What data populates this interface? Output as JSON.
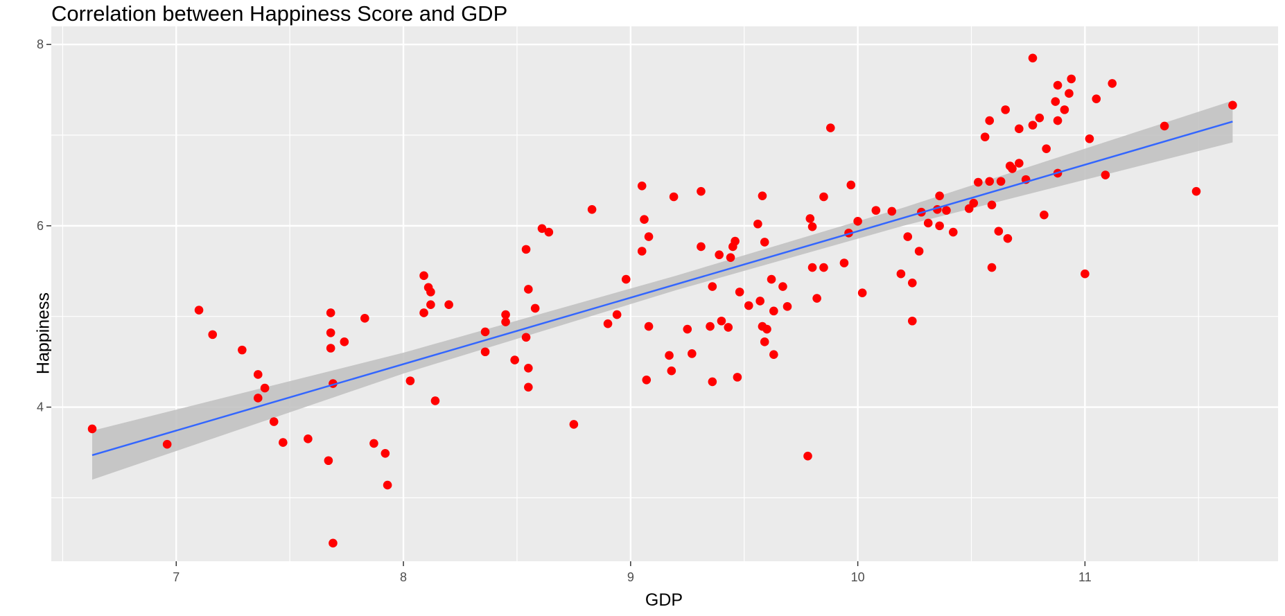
{
  "chart_data": {
    "type": "scatter",
    "title": "Correlation between Happiness Score and GDP",
    "xlabel": "GDP",
    "ylabel": "Happiness",
    "xlim": [
      6.45,
      11.85
    ],
    "ylim": [
      2.3,
      8.2
    ],
    "x_ticks": [
      7,
      8,
      9,
      10,
      11
    ],
    "y_ticks": [
      4,
      6,
      8
    ],
    "grid": true,
    "legend": "none",
    "colors": {
      "panel": "#ebebeb",
      "grid": "#ffffff",
      "points": "#ff0000",
      "trend_line": "#3366ff",
      "confidence_band": "#c0c0c0"
    },
    "trend_line": {
      "x": [
        6.63,
        11.65
      ],
      "y": [
        3.47,
        7.15
      ]
    },
    "confidence_band": {
      "x": [
        6.63,
        8.0,
        9.2,
        10.2,
        11.65
      ],
      "lower": [
        3.2,
        4.37,
        5.29,
        6.0,
        6.92
      ],
      "upper": [
        3.74,
        4.6,
        5.45,
        6.2,
        7.38
      ]
    },
    "points": [
      [
        6.63,
        3.76
      ],
      [
        6.96,
        3.59
      ],
      [
        7.1,
        5.07
      ],
      [
        7.16,
        4.8
      ],
      [
        7.29,
        4.63
      ],
      [
        7.36,
        4.36
      ],
      [
        7.36,
        4.1
      ],
      [
        7.39,
        4.21
      ],
      [
        7.43,
        3.84
      ],
      [
        7.47,
        3.61
      ],
      [
        7.58,
        3.65
      ],
      [
        7.67,
        3.41
      ],
      [
        7.68,
        5.04
      ],
      [
        7.68,
        4.82
      ],
      [
        7.68,
        4.65
      ],
      [
        7.69,
        4.26
      ],
      [
        7.69,
        2.5
      ],
      [
        7.74,
        4.72
      ],
      [
        7.83,
        4.98
      ],
      [
        7.87,
        3.6
      ],
      [
        7.92,
        3.49
      ],
      [
        7.93,
        3.14
      ],
      [
        8.03,
        4.29
      ],
      [
        8.09,
        5.45
      ],
      [
        8.09,
        5.04
      ],
      [
        8.11,
        5.32
      ],
      [
        8.12,
        5.27
      ],
      [
        8.12,
        5.13
      ],
      [
        8.14,
        4.07
      ],
      [
        8.2,
        5.13
      ],
      [
        8.36,
        4.83
      ],
      [
        8.36,
        4.61
      ],
      [
        8.45,
        5.02
      ],
      [
        8.45,
        4.94
      ],
      [
        8.49,
        4.52
      ],
      [
        8.54,
        5.74
      ],
      [
        8.55,
        5.3
      ],
      [
        8.54,
        4.77
      ],
      [
        8.55,
        4.43
      ],
      [
        8.55,
        4.22
      ],
      [
        8.58,
        5.09
      ],
      [
        8.61,
        5.97
      ],
      [
        8.64,
        5.93
      ],
      [
        8.75,
        3.81
      ],
      [
        8.83,
        6.18
      ],
      [
        8.9,
        4.92
      ],
      [
        8.94,
        5.02
      ],
      [
        8.98,
        5.41
      ],
      [
        9.05,
        6.44
      ],
      [
        9.05,
        5.72
      ],
      [
        9.06,
        6.07
      ],
      [
        9.07,
        4.3
      ],
      [
        9.08,
        5.88
      ],
      [
        9.08,
        4.89
      ],
      [
        9.17,
        4.57
      ],
      [
        9.18,
        4.4
      ],
      [
        9.19,
        6.32
      ],
      [
        9.25,
        4.86
      ],
      [
        9.27,
        4.59
      ],
      [
        9.31,
        6.38
      ],
      [
        9.31,
        5.77
      ],
      [
        9.35,
        4.89
      ],
      [
        9.36,
        5.33
      ],
      [
        9.36,
        4.28
      ],
      [
        9.39,
        5.68
      ],
      [
        9.4,
        4.95
      ],
      [
        9.43,
        4.88
      ],
      [
        9.44,
        5.65
      ],
      [
        9.45,
        5.77
      ],
      [
        9.46,
        5.83
      ],
      [
        9.48,
        5.27
      ],
      [
        9.47,
        4.33
      ],
      [
        9.52,
        5.12
      ],
      [
        9.56,
        6.02
      ],
      [
        9.57,
        5.17
      ],
      [
        9.58,
        6.33
      ],
      [
        9.59,
        5.82
      ],
      [
        9.58,
        4.89
      ],
      [
        9.59,
        4.72
      ],
      [
        9.6,
        4.86
      ],
      [
        9.62,
        5.41
      ],
      [
        9.63,
        5.06
      ],
      [
        9.63,
        4.58
      ],
      [
        9.67,
        5.33
      ],
      [
        9.69,
        5.11
      ],
      [
        9.78,
        3.46
      ],
      [
        9.79,
        6.08
      ],
      [
        9.8,
        5.54
      ],
      [
        9.8,
        5.99
      ],
      [
        9.82,
        5.2
      ],
      [
        9.85,
        6.32
      ],
      [
        9.85,
        5.54
      ],
      [
        9.88,
        7.08
      ],
      [
        9.94,
        5.59
      ],
      [
        9.96,
        5.92
      ],
      [
        9.97,
        6.45
      ],
      [
        10.0,
        6.05
      ],
      [
        10.02,
        5.26
      ],
      [
        10.08,
        6.17
      ],
      [
        10.15,
        6.16
      ],
      [
        10.19,
        5.47
      ],
      [
        10.22,
        5.88
      ],
      [
        10.24,
        5.37
      ],
      [
        10.24,
        4.95
      ],
      [
        10.27,
        5.72
      ],
      [
        10.28,
        6.15
      ],
      [
        10.31,
        6.03
      ],
      [
        10.35,
        6.18
      ],
      [
        10.36,
        6.33
      ],
      [
        10.36,
        6.0
      ],
      [
        10.39,
        6.17
      ],
      [
        10.42,
        5.93
      ],
      [
        10.49,
        6.19
      ],
      [
        10.51,
        6.25
      ],
      [
        10.53,
        6.48
      ],
      [
        10.56,
        6.98
      ],
      [
        10.58,
        7.16
      ],
      [
        10.58,
        6.49
      ],
      [
        10.59,
        6.23
      ],
      [
        10.59,
        5.54
      ],
      [
        10.62,
        5.94
      ],
      [
        10.63,
        6.49
      ],
      [
        10.65,
        7.28
      ],
      [
        10.66,
        5.86
      ],
      [
        10.67,
        6.66
      ],
      [
        10.68,
        6.63
      ],
      [
        10.71,
        6.69
      ],
      [
        10.71,
        7.07
      ],
      [
        10.74,
        6.51
      ],
      [
        10.77,
        7.85
      ],
      [
        10.77,
        7.11
      ],
      [
        10.8,
        7.19
      ],
      [
        10.82,
        6.12
      ],
      [
        10.83,
        6.85
      ],
      [
        10.87,
        7.37
      ],
      [
        10.88,
        7.55
      ],
      [
        10.88,
        7.16
      ],
      [
        10.88,
        6.58
      ],
      [
        10.91,
        7.28
      ],
      [
        10.93,
        7.46
      ],
      [
        10.94,
        7.62
      ],
      [
        11.0,
        5.47
      ],
      [
        11.02,
        6.96
      ],
      [
        11.05,
        7.4
      ],
      [
        11.09,
        6.56
      ],
      [
        11.12,
        7.57
      ],
      [
        11.35,
        7.1
      ],
      [
        11.49,
        6.38
      ],
      [
        11.65,
        7.33
      ]
    ]
  }
}
